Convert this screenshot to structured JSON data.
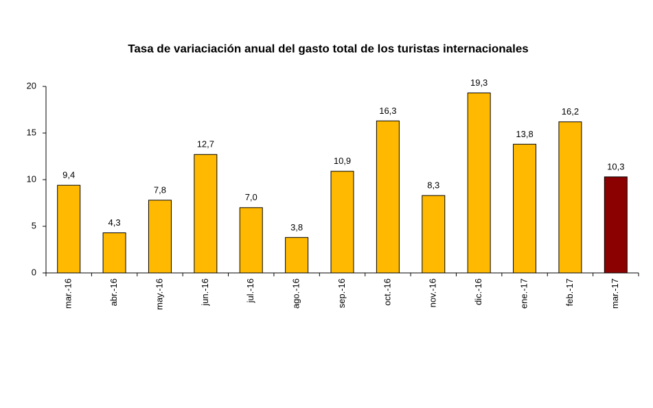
{
  "chart_data": {
    "type": "bar",
    "title": "Tasa de variaciación anual del gasto total de los turistas internacionales",
    "categories": [
      "mar.-16",
      "abr.-16",
      "may.-16",
      "jun.-16",
      "jul.-16",
      "ago.-16",
      "sep.-16",
      "oct.-16",
      "nov.-16",
      "dic.-16",
      "ene.-17",
      "feb.-17",
      "mar.-17"
    ],
    "values": [
      9.4,
      4.3,
      7.8,
      12.7,
      7.0,
      3.8,
      10.9,
      16.3,
      8.3,
      19.3,
      13.8,
      16.2,
      10.3
    ],
    "value_labels": [
      "9,4",
      "4,3",
      "7,8",
      "12,7",
      "7,0",
      "3,8",
      "10,9",
      "16,3",
      "8,3",
      "19,3",
      "13,8",
      "16,2",
      "10,3"
    ],
    "colors": [
      "#ffb900",
      "#ffb900",
      "#ffb900",
      "#ffb900",
      "#ffb900",
      "#ffb900",
      "#ffb900",
      "#ffb900",
      "#ffb900",
      "#ffb900",
      "#ffb900",
      "#ffb900",
      "#8b0000"
    ],
    "ylim": [
      0,
      20
    ],
    "yticks": [
      0,
      5,
      10,
      15,
      20
    ],
    "grid": false
  }
}
